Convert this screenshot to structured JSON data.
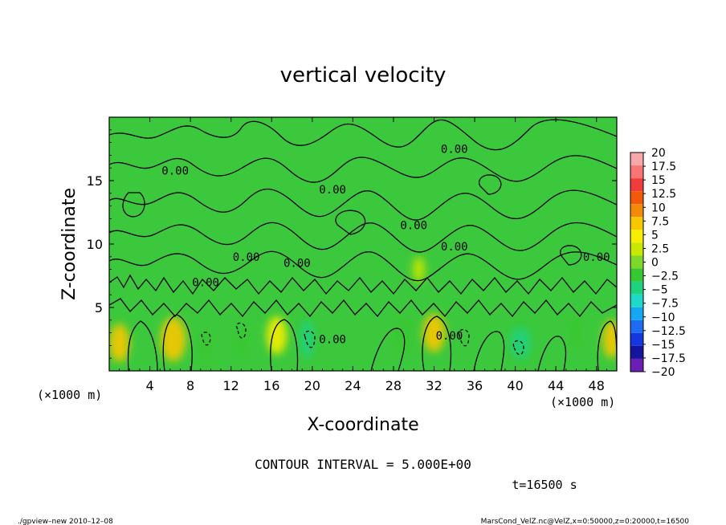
{
  "chart_data": {
    "type": "heatmap",
    "title": "vertical velocity",
    "xlabel": "X-coordinate",
    "ylabel": "Z-coordinate",
    "x_unit_left": "(×1000 m)",
    "x_unit_right": "(×1000 m)",
    "xlim": [
      0,
      50
    ],
    "ylim": [
      0,
      20
    ],
    "x_ticks": [
      "4",
      "8",
      "12",
      "16",
      "20",
      "24",
      "28",
      "32",
      "36",
      "40",
      "44",
      "48"
    ],
    "y_ticks": [
      "5",
      "10",
      "15"
    ],
    "contour_interval_text": "CONTOUR INTERVAL = 5.000E+00",
    "time_text": "t=16500 s",
    "contour_labels": [
      {
        "text": "0.00",
        "x": 6.5,
        "z": 15.8
      },
      {
        "text": "0.00",
        "x": 22.0,
        "z": 14.3
      },
      {
        "text": "0.00",
        "x": 30.0,
        "z": 11.5
      },
      {
        "text": "0.00",
        "x": 34.0,
        "z": 17.5
      },
      {
        "text": "0.00",
        "x": 13.5,
        "z": 9.0
      },
      {
        "text": "0.00",
        "x": 9.5,
        "z": 7.0
      },
      {
        "text": "0.00",
        "x": 18.5,
        "z": 8.5
      },
      {
        "text": "0.00",
        "x": 34.0,
        "z": 9.8
      },
      {
        "text": "0.00",
        "x": 48.0,
        "z": 9.0
      },
      {
        "text": "0.00",
        "x": 22.0,
        "z": 2.5
      },
      {
        "text": "0.00",
        "x": 33.5,
        "z": 2.8
      }
    ],
    "colorbar": {
      "levels": [
        "20",
        "17.5",
        "15",
        "12.5",
        "10",
        "7.5",
        "5",
        "2.5",
        "0",
        "−2.5",
        "−5",
        "−7.5",
        "−10",
        "−12.5",
        "−15",
        "−17.5",
        "−20"
      ],
      "colors": [
        "#f7a8a8",
        "#f77575",
        "#f23c3c",
        "#f25a0a",
        "#f58a0a",
        "#f7c800",
        "#f5ee00",
        "#c8e800",
        "#7ed82a",
        "#36c832",
        "#1ed27e",
        "#1ed8c8",
        "#14a8f2",
        "#1e6cf2",
        "#1438e0",
        "#14149c",
        "#6a1eb4"
      ]
    },
    "field_base_color": "#3cc83c",
    "warm_cells": [
      {
        "x": 1.0,
        "z": 2.2,
        "w": 2.0,
        "h": 3.0,
        "value": 7.5
      },
      {
        "x": 6.3,
        "z": 2.5,
        "w": 2.5,
        "h": 3.5,
        "value": 7.5
      },
      {
        "x": 16.5,
        "z": 2.8,
        "w": 2.0,
        "h": 3.0,
        "value": 5.0
      },
      {
        "x": 32.0,
        "z": 3.0,
        "w": 2.2,
        "h": 3.0,
        "value": 7.5
      },
      {
        "x": 49.5,
        "z": 2.5,
        "w": 1.8,
        "h": 3.0,
        "value": 7.5
      },
      {
        "x": 30.5,
        "z": 8.0,
        "w": 1.2,
        "h": 2.0,
        "value": 2.5
      }
    ],
    "cool_cells": [
      {
        "x": 9.5,
        "z": 2.0,
        "w": 1.5,
        "h": 2.5,
        "value": -2.5
      },
      {
        "x": 13.0,
        "z": 2.2,
        "w": 1.8,
        "h": 2.5,
        "value": -2.5
      },
      {
        "x": 19.5,
        "z": 2.5,
        "w": 1.4,
        "h": 3.0,
        "value": -5.0
      },
      {
        "x": 29.0,
        "z": 2.8,
        "w": 1.8,
        "h": 3.0,
        "value": -2.5
      },
      {
        "x": 40.5,
        "z": 2.2,
        "w": 2.0,
        "h": 2.5,
        "value": -5.0
      },
      {
        "x": 46.0,
        "z": 3.0,
        "w": 1.6,
        "h": 2.5,
        "value": -2.5
      }
    ]
  },
  "footer": {
    "left": "./gpview–new  2010–12–08",
    "right": "MarsCond_VelZ.nc@VelZ,x=0:50000,z=0:20000,t=16500"
  }
}
